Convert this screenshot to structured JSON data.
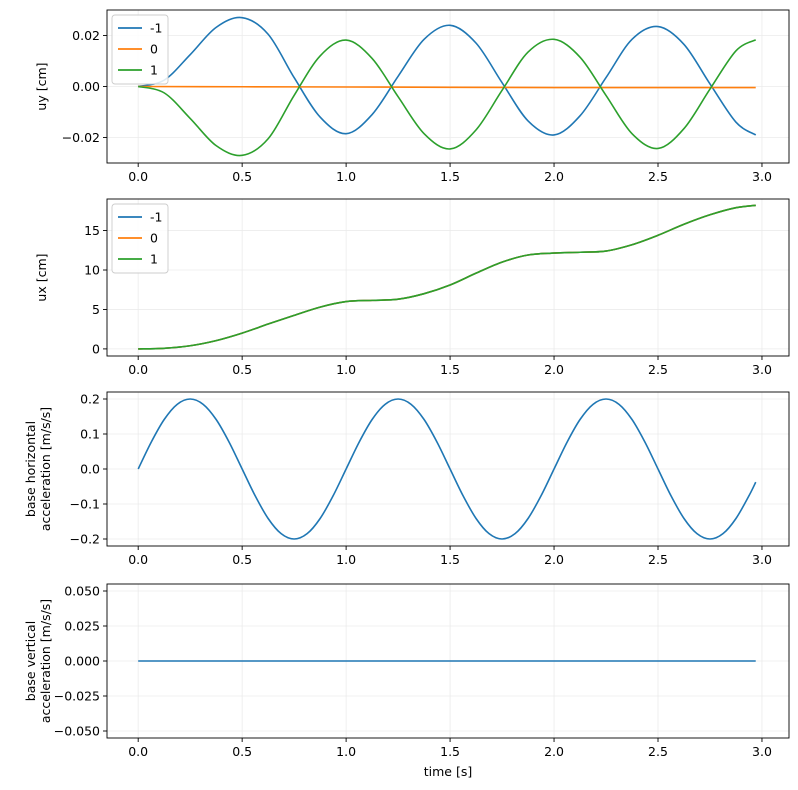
{
  "figure": {
    "width": 798,
    "height": 790
  },
  "chart_data": [
    {
      "type": "line",
      "title": "",
      "xlabel": "",
      "ylabel": "uy [cm]",
      "xlim": [
        -0.15,
        3.13
      ],
      "ylim": [
        -0.03,
        0.03
      ],
      "xticks": [
        0.0,
        0.5,
        1.0,
        1.5,
        2.0,
        2.5,
        3.0
      ],
      "xtick_labels": [
        "0.0",
        "0.5",
        "1.0",
        "1.5",
        "2.0",
        "2.5",
        "3.0"
      ],
      "yticks": [
        -0.02,
        0.0,
        0.02
      ],
      "ytick_labels": [
        "−0.02",
        "0.00",
        "0.02"
      ],
      "grid": true,
      "legend_position": "top-left",
      "series": [
        {
          "name": "-1",
          "color": "#1f77b4",
          "x": [
            0.0,
            0.125,
            0.25,
            0.375,
            0.5,
            0.625,
            0.75,
            0.875,
            1.0,
            1.125,
            1.25,
            1.375,
            1.5,
            1.625,
            1.75,
            1.875,
            2.0,
            2.125,
            2.25,
            2.375,
            2.5,
            2.625,
            2.75,
            2.875,
            2.97
          ],
          "y": [
            0.0,
            0.0025,
            0.0125,
            0.0232,
            0.027,
            0.0205,
            0.0035,
            -0.012,
            -0.0185,
            -0.011,
            0.004,
            0.0185,
            0.024,
            0.017,
            0.0015,
            -0.0135,
            -0.019,
            -0.0115,
            0.0035,
            0.0185,
            0.0235,
            0.0165,
            0.001,
            -0.014,
            -0.019
          ]
        },
        {
          "name": "0",
          "color": "#ff7f0e",
          "x": [
            0.0,
            0.5,
            1.0,
            1.5,
            2.0,
            2.5,
            2.97
          ],
          "y": [
            0.0,
            -0.0001,
            -0.0002,
            -0.0003,
            -0.0004,
            -0.0004,
            -0.0004
          ]
        },
        {
          "name": "1",
          "color": "#2ca02c",
          "x": [
            0.0,
            0.125,
            0.25,
            0.375,
            0.5,
            0.625,
            0.75,
            0.875,
            1.0,
            1.125,
            1.25,
            1.375,
            1.5,
            1.625,
            1.75,
            1.875,
            2.0,
            2.125,
            2.25,
            2.375,
            2.5,
            2.625,
            2.75,
            2.875,
            2.97
          ],
          "y": [
            0.0,
            -0.0025,
            -0.0125,
            -0.0232,
            -0.027,
            -0.0205,
            -0.0035,
            0.012,
            0.0182,
            0.011,
            -0.004,
            -0.0185,
            -0.0245,
            -0.017,
            -0.0015,
            0.0135,
            0.0185,
            0.0115,
            -0.0035,
            -0.0185,
            -0.0243,
            -0.0165,
            -0.001,
            0.014,
            0.0183
          ]
        }
      ]
    },
    {
      "type": "line",
      "title": "",
      "xlabel": "",
      "ylabel": "ux [cm]",
      "xlim": [
        -0.15,
        3.13
      ],
      "ylim": [
        -0.9,
        19.0
      ],
      "xticks": [
        0.0,
        0.5,
        1.0,
        1.5,
        2.0,
        2.5,
        3.0
      ],
      "xtick_labels": [
        "0.0",
        "0.5",
        "1.0",
        "1.5",
        "2.0",
        "2.5",
        "3.0"
      ],
      "yticks": [
        0,
        5,
        10,
        15
      ],
      "ytick_labels": [
        "0",
        "5",
        "10",
        "15"
      ],
      "grid": true,
      "legend_position": "top-left",
      "series": [
        {
          "name": "-1",
          "color": "#1f77b4",
          "x": [
            0.0,
            0.125,
            0.25,
            0.375,
            0.5,
            0.625,
            0.75,
            0.875,
            1.0,
            1.125,
            1.25,
            1.375,
            1.5,
            1.625,
            1.75,
            1.875,
            2.0,
            2.125,
            2.25,
            2.375,
            2.5,
            2.625,
            2.75,
            2.875,
            2.97
          ],
          "y": [
            0.0,
            0.08,
            0.4,
            1.05,
            2.0,
            3.15,
            4.25,
            5.3,
            6.0,
            6.15,
            6.3,
            7.0,
            8.1,
            9.6,
            11.0,
            11.9,
            12.15,
            12.25,
            12.4,
            13.2,
            14.4,
            15.8,
            17.0,
            17.9,
            18.2
          ]
        },
        {
          "name": "0",
          "color": "#ff7f0e",
          "x": [
            0.0,
            0.125,
            0.25,
            0.375,
            0.5,
            0.625,
            0.75,
            0.875,
            1.0,
            1.125,
            1.25,
            1.375,
            1.5,
            1.625,
            1.75,
            1.875,
            2.0,
            2.125,
            2.25,
            2.375,
            2.5,
            2.625,
            2.75,
            2.875,
            2.97
          ],
          "y": [
            0.0,
            0.08,
            0.4,
            1.05,
            2.0,
            3.15,
            4.25,
            5.3,
            6.0,
            6.15,
            6.3,
            7.0,
            8.1,
            9.6,
            11.0,
            11.9,
            12.15,
            12.25,
            12.4,
            13.2,
            14.4,
            15.8,
            17.0,
            17.9,
            18.2
          ]
        },
        {
          "name": "1",
          "color": "#2ca02c",
          "x": [
            0.0,
            0.125,
            0.25,
            0.375,
            0.5,
            0.625,
            0.75,
            0.875,
            1.0,
            1.125,
            1.25,
            1.375,
            1.5,
            1.625,
            1.75,
            1.875,
            2.0,
            2.125,
            2.25,
            2.375,
            2.5,
            2.625,
            2.75,
            2.875,
            2.97
          ],
          "y": [
            0.0,
            0.08,
            0.4,
            1.05,
            2.0,
            3.15,
            4.25,
            5.3,
            6.0,
            6.15,
            6.3,
            7.0,
            8.1,
            9.6,
            11.0,
            11.9,
            12.15,
            12.25,
            12.4,
            13.2,
            14.4,
            15.8,
            17.0,
            17.9,
            18.2
          ]
        }
      ]
    },
    {
      "type": "line",
      "title": "",
      "xlabel": "",
      "ylabel": [
        "base horizontal",
        "acceleration [m/s/s]"
      ],
      "xlim": [
        -0.15,
        3.13
      ],
      "ylim": [
        -0.22,
        0.22
      ],
      "xticks": [
        0.0,
        0.5,
        1.0,
        1.5,
        2.0,
        2.5,
        3.0
      ],
      "xtick_labels": [
        "0.0",
        "0.5",
        "1.0",
        "1.5",
        "2.0",
        "2.5",
        "3.0"
      ],
      "yticks": [
        -0.2,
        -0.1,
        0.0,
        0.1,
        0.2
      ],
      "ytick_labels": [
        "−0.2",
        "−0.1",
        "0.0",
        "0.1",
        "0.2"
      ],
      "grid": true,
      "legend_position": "none",
      "series": [
        {
          "color": "#1f77b4",
          "x": [
            0.0,
            0.0625,
            0.125,
            0.1875,
            0.25,
            0.3125,
            0.375,
            0.4375,
            0.5,
            0.5625,
            0.625,
            0.6875,
            0.75,
            0.8125,
            0.875,
            0.9375,
            1.0,
            1.0625,
            1.125,
            1.1875,
            1.25,
            1.3125,
            1.375,
            1.4375,
            1.5,
            1.5625,
            1.625,
            1.6875,
            1.75,
            1.8125,
            1.875,
            1.9375,
            2.0,
            2.0625,
            2.125,
            2.1875,
            2.25,
            2.3125,
            2.375,
            2.4375,
            2.5,
            2.5625,
            2.625,
            2.6875,
            2.75,
            2.8125,
            2.875,
            2.9375,
            2.97
          ],
          "y": [
            0.0,
            0.0765,
            0.1414,
            0.1848,
            0.2,
            0.1848,
            0.1414,
            0.0765,
            0.0,
            -0.0765,
            -0.1414,
            -0.1848,
            -0.2,
            -0.1848,
            -0.1414,
            -0.0765,
            0.0,
            0.0765,
            0.1414,
            0.1848,
            0.2,
            0.1848,
            0.1414,
            0.0765,
            0.0,
            -0.0765,
            -0.1414,
            -0.1848,
            -0.2,
            -0.1848,
            -0.1414,
            -0.0765,
            0.0,
            0.0765,
            0.1414,
            0.1848,
            0.2,
            0.1848,
            0.1414,
            0.0765,
            0.0,
            -0.0765,
            -0.1414,
            -0.1848,
            -0.2,
            -0.1848,
            -0.1414,
            -0.0765,
            -0.0375
          ]
        }
      ]
    },
    {
      "type": "line",
      "title": "",
      "xlabel": "time [s]",
      "ylabel": [
        "base vertical",
        "acceleration [m/s/s]"
      ],
      "xlim": [
        -0.15,
        3.13
      ],
      "ylim": [
        -0.055,
        0.055
      ],
      "xticks": [
        0.0,
        0.5,
        1.0,
        1.5,
        2.0,
        2.5,
        3.0
      ],
      "xtick_labels": [
        "0.0",
        "0.5",
        "1.0",
        "1.5",
        "2.0",
        "2.5",
        "3.0"
      ],
      "yticks": [
        -0.05,
        -0.025,
        0.0,
        0.025,
        0.05
      ],
      "ytick_labels": [
        "−0.050",
        "−0.025",
        "0.000",
        "0.025",
        "0.050"
      ],
      "grid": true,
      "legend_position": "none",
      "series": [
        {
          "color": "#1f77b4",
          "x": [
            0.0,
            2.97
          ],
          "y": [
            0.0,
            0.0
          ]
        }
      ]
    }
  ]
}
